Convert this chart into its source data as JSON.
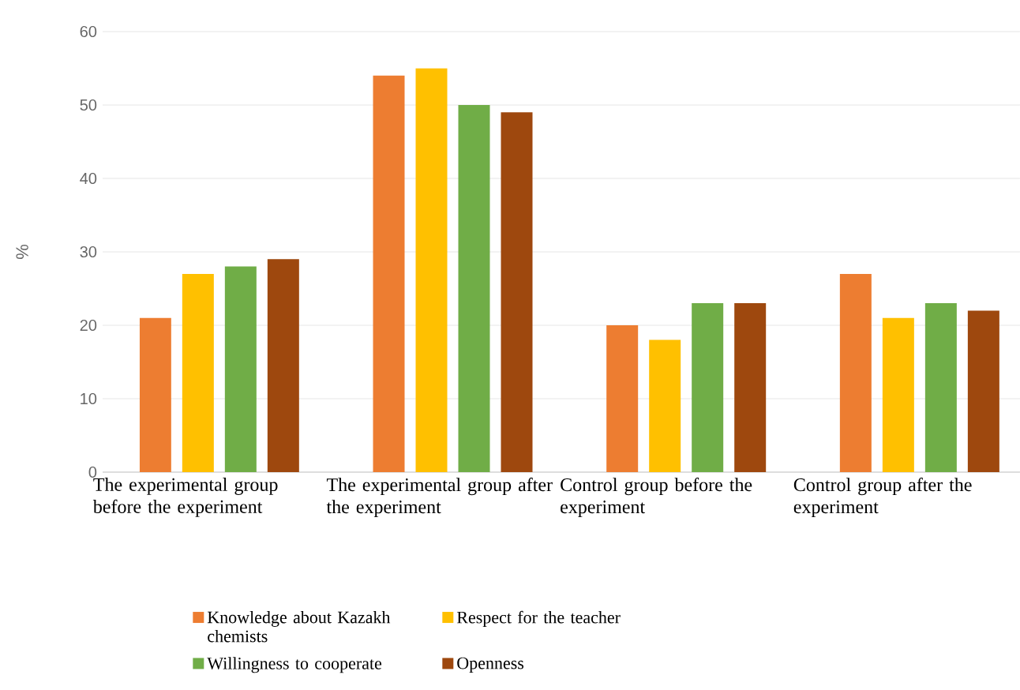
{
  "chart_data": {
    "type": "bar",
    "ylabel": "%",
    "categories": [
      "The experimental group before the experiment",
      "The experimental group after the experiment",
      "Control group before the experiment",
      "Control group after the experiment"
    ],
    "series": [
      {
        "name": "Knowledge about Kazakh chemists",
        "color": "#ed7d31",
        "values": [
          21,
          54,
          20,
          27
        ]
      },
      {
        "name": "Respect for the teacher",
        "color": "#ffc000",
        "values": [
          27,
          55,
          18,
          21
        ]
      },
      {
        "name": "Willingness to cooperate",
        "color": "#70ad47",
        "values": [
          28,
          50,
          23,
          23
        ]
      },
      {
        "name": "Openness",
        "color": "#9e480e",
        "values": [
          29,
          49,
          23,
          22
        ]
      }
    ],
    "ylim": [
      0,
      60
    ],
    "yticks": [
      0,
      10,
      20,
      30,
      40,
      50,
      60
    ],
    "grid": "y",
    "legend": "bottom"
  }
}
